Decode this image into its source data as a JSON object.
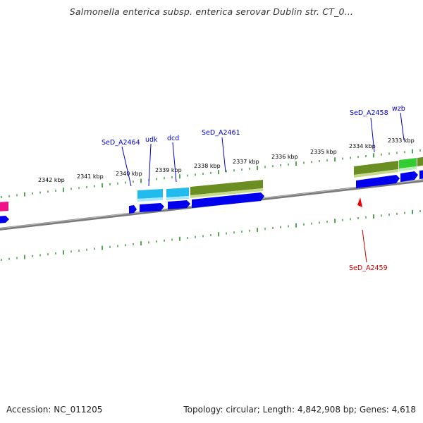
{
  "title": "Salmonella enterica subsp. enterica serovar Dublin str. CT_0...",
  "footer": {
    "accession": "Accession: NC_011205",
    "summary": "Topology: circular; Length: 4,842,908 bp; Genes: 4,618"
  },
  "colors": {
    "backbone": "#7a7a7a",
    "tick": "#2e8b2e",
    "forward_gene": "#0000ee",
    "cds_light": "#22bbee",
    "cds_olive": "#6b8e23",
    "cds_green": "#33cc33",
    "cds_magenta": "#ee1188",
    "label_blue": "#0000cc",
    "label_red": "#cc0000"
  },
  "ruler_labels": [
    "2342 kbp",
    "2341 kbp",
    "2340 kbp",
    "2339 kbp",
    "2338 kbp",
    "2337 kbp",
    "2336 kbp",
    "2335 kbp",
    "2334 kbp",
    "2333 kbp"
  ],
  "gene_labels": {
    "sed_a2464": "SeD_A2464",
    "udk": "udk",
    "dcd": "dcd",
    "sed_a2461": "SeD_A2461",
    "sed_a2458": "SeD_A2458",
    "wzb": "wzb",
    "sed_a2459": "SeD_A2459"
  }
}
